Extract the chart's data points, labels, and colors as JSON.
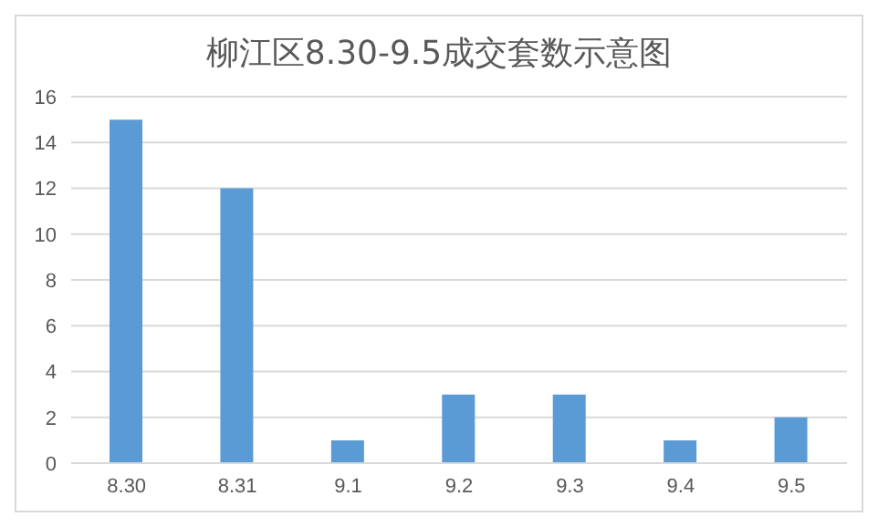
{
  "chart_data": {
    "type": "bar",
    "title": "柳江区8.30-9.5成交套数示意图",
    "categories": [
      "8.30",
      "8.31",
      "9.1",
      "9.2",
      "9.3",
      "9.4",
      "9.5"
    ],
    "values": [
      15,
      12,
      1,
      3,
      3,
      1,
      2
    ],
    "color": "#5b9bd5",
    "ylim": [
      0,
      16
    ],
    "yticks": [
      0,
      2,
      4,
      6,
      8,
      10,
      12,
      14,
      16
    ],
    "grid": "y",
    "legend": false
  }
}
